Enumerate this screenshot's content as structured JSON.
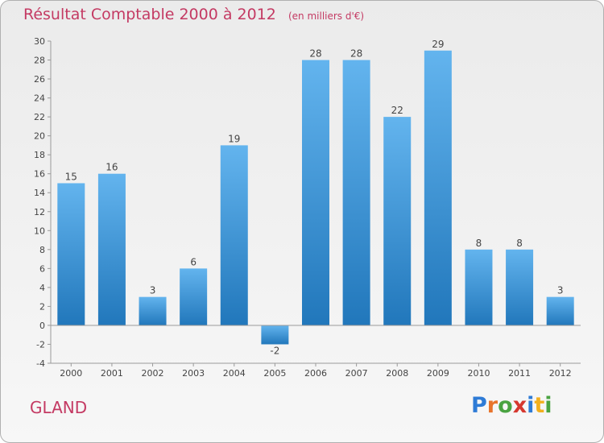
{
  "header": {
    "title": "Résultat Comptable 2000 à 2012",
    "subtitle": "(en milliers d'€)"
  },
  "commune": "GLAND",
  "logo": {
    "text": "Proxiti",
    "colors": [
      "#2e7bd6",
      "#e8742b",
      "#4aa341",
      "#d6382f",
      "#2e7bd6",
      "#f2b01e",
      "#4aa341"
    ]
  },
  "colors": {
    "bar_top": "#63b4ee",
    "bar_bottom": "#2177bb",
    "title": "#c43a63"
  },
  "chart_data": {
    "type": "bar",
    "title": "Résultat Comptable 2000 à 2012",
    "subtitle": "(en milliers d'€)",
    "categories": [
      "2000",
      "2001",
      "2002",
      "2003",
      "2004",
      "2005",
      "2006",
      "2007",
      "2008",
      "2009",
      "2010",
      "2011",
      "2012"
    ],
    "values": [
      15,
      16,
      3,
      6,
      19,
      -2,
      28,
      28,
      22,
      29,
      8,
      8,
      3
    ],
    "data_labels": [
      "15",
      "16",
      "3",
      "6",
      "19",
      "-2",
      "28",
      "28",
      "22",
      "29",
      "8",
      "8",
      "3"
    ],
    "xlabel": "",
    "ylabel": "",
    "ylim": [
      -4,
      30
    ],
    "yticks": [
      -4,
      -2,
      0,
      2,
      4,
      6,
      8,
      10,
      12,
      14,
      16,
      18,
      20,
      22,
      24,
      26,
      28,
      30
    ],
    "grid": false,
    "legend": "none"
  }
}
